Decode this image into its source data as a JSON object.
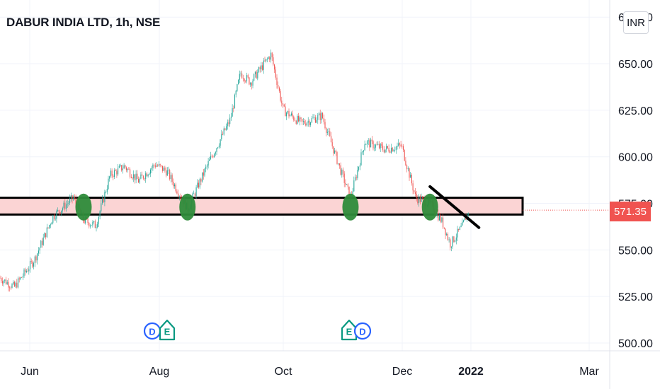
{
  "header": {
    "title": "DABUR INDIA LTD, 1h, NSE",
    "currency_button": "INR"
  },
  "colors": {
    "up": "#26a69a",
    "down": "#ef5350",
    "zone_fill": "#fbd4d4",
    "marker": "#2e8b3a",
    "price_tag": "#f05350",
    "dividend_event": "#2962ff",
    "earnings_event": "#089981"
  },
  "chart_data": {
    "type": "candlestick",
    "title": "DABUR INDIA LTD, 1h, NSE",
    "y_axis": {
      "ticks": [
        "500.00",
        "525.00",
        "550.00",
        "575.00",
        "600.00",
        "625.00",
        "650.00"
      ],
      "tick_values": [
        500,
        525,
        550,
        575,
        600,
        625,
        650
      ],
      "top_partial_label": "675.00",
      "range": [
        495,
        678
      ]
    },
    "x_axis": {
      "labels": [
        "Jun",
        "Aug",
        "Oct",
        "Dec",
        "2022",
        "Mar"
      ],
      "bold_labels": [
        "2022"
      ]
    },
    "last_price": "571.35",
    "last_price_value": 571.35,
    "price_path": [
      {
        "x": "May 15",
        "y": 535
      },
      {
        "x": "May 22",
        "y": 530
      },
      {
        "x": "Jun 1",
        "y": 545
      },
      {
        "x": "Jun 10",
        "y": 568
      },
      {
        "x": "Jun 20",
        "y": 578
      },
      {
        "x": "Jun 25",
        "y": 566
      },
      {
        "x": "Jul 1",
        "y": 563
      },
      {
        "x": "Jul 8",
        "y": 590
      },
      {
        "x": "Jul 15",
        "y": 595
      },
      {
        "x": "Jul 22",
        "y": 587
      },
      {
        "x": "Jul 30",
        "y": 596
      },
      {
        "x": "Aug 5",
        "y": 592
      },
      {
        "x": "Aug 15",
        "y": 572
      },
      {
        "x": "Aug 25",
        "y": 596
      },
      {
        "x": "Sep 5",
        "y": 620
      },
      {
        "x": "Sep 10",
        "y": 645
      },
      {
        "x": "Sep 15",
        "y": 640
      },
      {
        "x": "Sep 25",
        "y": 655
      },
      {
        "x": "Oct 1",
        "y": 625
      },
      {
        "x": "Oct 10",
        "y": 618
      },
      {
        "x": "Oct 20",
        "y": 622
      },
      {
        "x": "Oct 30",
        "y": 590
      },
      {
        "x": "Nov 3",
        "y": 578
      },
      {
        "x": "Nov 10",
        "y": 608
      },
      {
        "x": "Nov 20",
        "y": 604
      },
      {
        "x": "Nov 28",
        "y": 606
      },
      {
        "x": "Dec 5",
        "y": 578
      },
      {
        "x": "Dec 12",
        "y": 575
      },
      {
        "x": "Dec 18",
        "y": 565
      },
      {
        "x": "Dec 22",
        "y": 553
      },
      {
        "x": "Dec 28",
        "y": 563
      },
      {
        "x": "Dec 31",
        "y": 571.35
      }
    ],
    "annotations": {
      "support_zone": {
        "low": 569,
        "high": 578
      },
      "touch_markers": [
        "Jun 25",
        "Aug 15",
        "Nov 3",
        "Dec 12"
      ],
      "trendline": {
        "from": {
          "x": "Dec 12",
          "y": 584
        },
        "to": {
          "x": "Jan 5",
          "y": 562
        }
      }
    },
    "events": [
      {
        "letter": "D",
        "type": "dividend"
      },
      {
        "letter": "E",
        "type": "earnings"
      },
      {
        "letter": "E",
        "type": "earnings"
      },
      {
        "letter": "D",
        "type": "dividend"
      }
    ]
  }
}
